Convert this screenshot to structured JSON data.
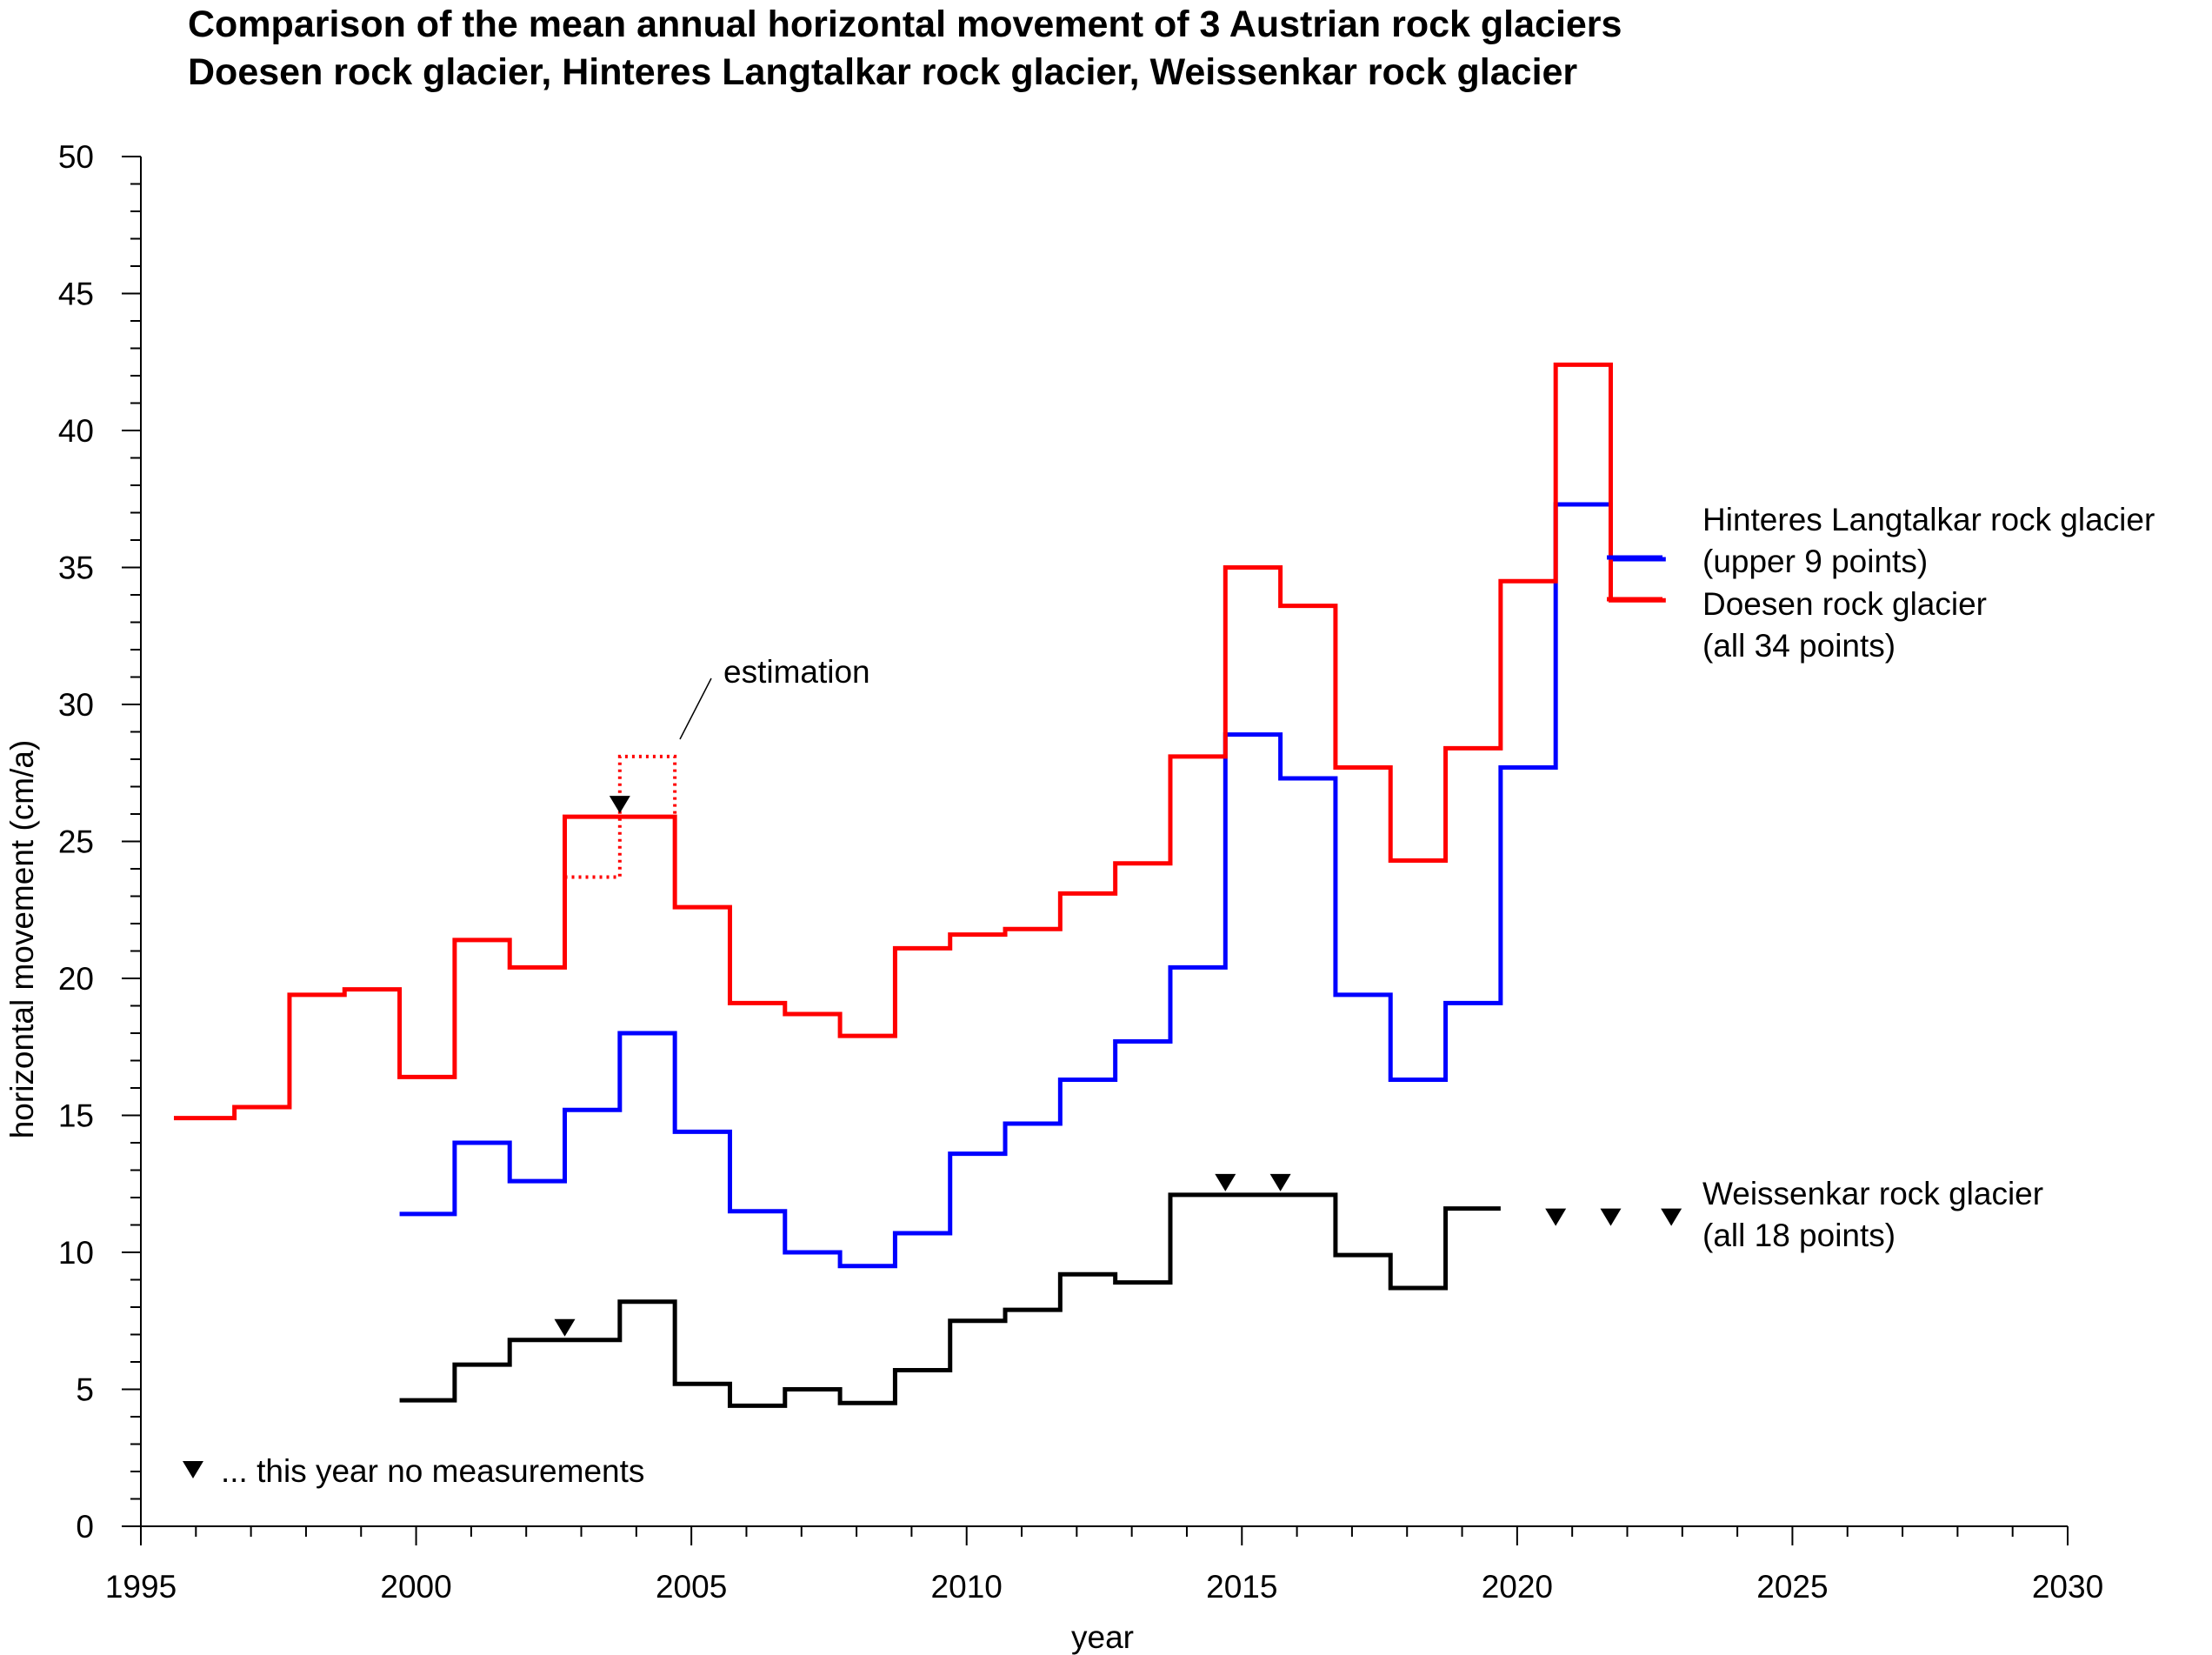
{
  "chart_data": {
    "type": "line",
    "title_lines": [
      "Comparison of the mean annual horizontal movement of 3 Austrian rock glaciers",
      "Doesen rock glacier, Hinteres Langtalkar rock glacier, Weissenkar rock glacier"
    ],
    "xlabel": "year",
    "ylabel": "horizontal movement (cm/a)",
    "xlim": [
      1995,
      2030
    ],
    "ylim": [
      0,
      50
    ],
    "x_ticks": [
      1995,
      2000,
      2005,
      2010,
      2015,
      2020,
      2025,
      2030
    ],
    "y_ticks": [
      0,
      5,
      10,
      15,
      20,
      25,
      30,
      35,
      40,
      45,
      50
    ],
    "grid": false,
    "step_style": "each value spans one year interval [start, start+1]",
    "series": [
      {
        "name": "Doesen rock glacier",
        "legend_lines": [
          "Doesen rock glacier",
          "(all 34 points)"
        ],
        "color": "#ff0000",
        "intervals": [
          [
            1995.6,
            1996.7,
            14.9
          ],
          [
            1996.7,
            1997.7,
            15.3
          ],
          [
            1997.7,
            1998.7,
            19.4
          ],
          [
            1998.7,
            1999.7,
            19.6
          ],
          [
            1999.7,
            2000.7,
            16.4
          ],
          [
            2000.7,
            2001.7,
            21.4
          ],
          [
            2001.7,
            2002.7,
            20.4
          ],
          [
            2002.7,
            2004.7,
            25.9
          ],
          [
            2004.7,
            2005.7,
            22.6
          ],
          [
            2005.7,
            2006.7,
            19.1
          ],
          [
            2006.7,
            2007.7,
            18.7
          ],
          [
            2007.7,
            2008.7,
            17.9
          ],
          [
            2008.7,
            2009.7,
            21.1
          ],
          [
            2009.7,
            2010.7,
            21.6
          ],
          [
            2010.7,
            2011.7,
            21.8
          ],
          [
            2011.7,
            2012.7,
            23.1
          ],
          [
            2012.7,
            2013.7,
            24.2
          ],
          [
            2013.7,
            2014.7,
            28.1
          ],
          [
            2014.7,
            2015.7,
            35.0
          ],
          [
            2015.7,
            2016.7,
            33.6
          ],
          [
            2016.7,
            2017.7,
            27.7
          ],
          [
            2017.7,
            2018.7,
            24.3
          ],
          [
            2018.7,
            2019.7,
            28.4
          ],
          [
            2019.7,
            2020.7,
            34.5
          ],
          [
            2020.7,
            2021.7,
            42.4
          ],
          [
            2021.7,
            2022.7,
            33.8
          ]
        ],
        "estimation_intervals": [
          [
            2002.7,
            2003.7,
            23.7
          ],
          [
            2003.7,
            2004.7,
            28.1
          ]
        ],
        "no_measurement_years": [
          2003.7
        ]
      },
      {
        "name": "Hinteres Langtalkar rock glacier",
        "legend_lines": [
          "Hinteres Langtalkar rock glacier",
          "(upper 9 points)"
        ],
        "color": "#0000ff",
        "intervals": [
          [
            1999.7,
            2000.7,
            11.4
          ],
          [
            2000.7,
            2001.7,
            14.0
          ],
          [
            2001.7,
            2002.7,
            12.6
          ],
          [
            2002.7,
            2003.7,
            15.2
          ],
          [
            2003.7,
            2004.7,
            18.0
          ],
          [
            2004.7,
            2005.7,
            14.4
          ],
          [
            2005.7,
            2006.7,
            11.5
          ],
          [
            2006.7,
            2007.7,
            10.0
          ],
          [
            2007.7,
            2008.7,
            9.5
          ],
          [
            2008.7,
            2009.7,
            10.7
          ],
          [
            2009.7,
            2010.7,
            13.6
          ],
          [
            2010.7,
            2011.7,
            14.7
          ],
          [
            2011.7,
            2012.7,
            16.3
          ],
          [
            2012.7,
            2013.7,
            17.7
          ],
          [
            2013.7,
            2014.7,
            20.4
          ],
          [
            2014.7,
            2015.7,
            28.9
          ],
          [
            2015.7,
            2016.7,
            27.3
          ],
          [
            2016.7,
            2017.7,
            19.4
          ],
          [
            2017.7,
            2018.7,
            16.3
          ],
          [
            2018.7,
            2019.7,
            19.1
          ],
          [
            2019.7,
            2020.7,
            27.7
          ],
          [
            2020.7,
            2021.7,
            37.3
          ],
          [
            2021.7,
            2022.7,
            35.3
          ]
        ]
      },
      {
        "name": "Weissenkar rock glacier",
        "legend_lines": [
          "Weissenkar rock glacier",
          "(all 18 points)"
        ],
        "color": "#000000",
        "intervals": [
          [
            1999.7,
            2000.7,
            4.6
          ],
          [
            2000.7,
            2001.7,
            5.9
          ],
          [
            2001.7,
            2003.7,
            6.8
          ],
          [
            2003.7,
            2004.7,
            8.2
          ],
          [
            2004.7,
            2005.7,
            5.2
          ],
          [
            2005.7,
            2006.7,
            4.4
          ],
          [
            2006.7,
            2007.7,
            5.0
          ],
          [
            2007.7,
            2008.7,
            4.5
          ],
          [
            2008.7,
            2009.7,
            5.7
          ],
          [
            2009.7,
            2010.7,
            7.5
          ],
          [
            2010.7,
            2011.7,
            7.9
          ],
          [
            2011.7,
            2012.7,
            9.2
          ],
          [
            2012.7,
            2013.7,
            8.9
          ],
          [
            2013.7,
            2016.7,
            12.1
          ],
          [
            2016.7,
            2017.7,
            9.9
          ],
          [
            2017.7,
            2018.7,
            8.7
          ],
          [
            2018.7,
            2019.7,
            11.6
          ]
        ],
        "no_measurement_years": [
          2002.7,
          2014.7,
          2015.7,
          2020.7,
          2021.7,
          2022.8
        ]
      }
    ],
    "annotations": {
      "estimation": "estimation",
      "no_measurement_note": "... this year no measurements"
    }
  }
}
